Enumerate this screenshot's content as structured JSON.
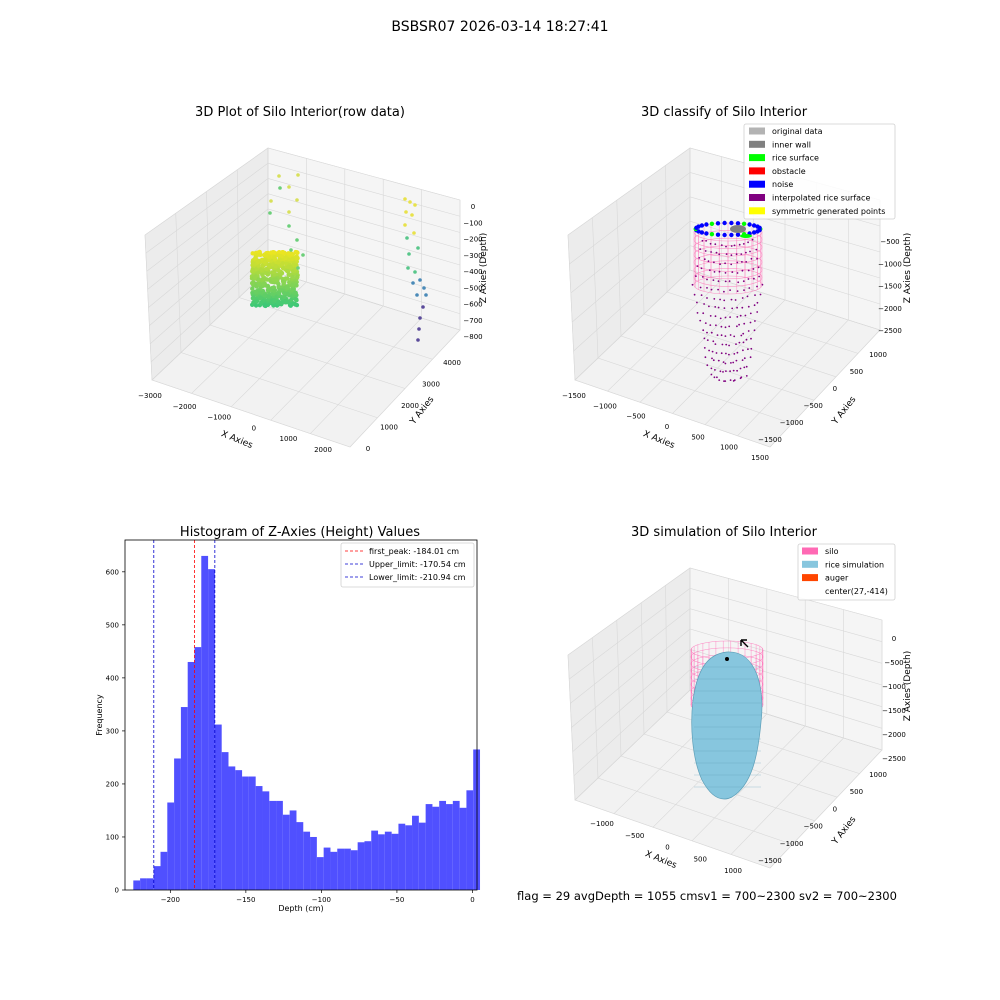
{
  "suptitle": "BSBSR07 2026-03-14 18:27:41",
  "footer": "flag = 29  avgDepth = 1055 cmsv1 = 700~2300  sv2 = 700~2300",
  "colors": {
    "histogram_bar": "#5050ff",
    "peak_line": "#ff0000",
    "limit_line": "#0000cc",
    "silo": "#ff69b4",
    "rice_simulation": "#87c6de",
    "auger": "#ff4500",
    "inner_wall": "#808080",
    "rice_surface": "#00ff00",
    "obstacle": "#ff0000",
    "noise": "#0000ff",
    "interpolated": "#800080",
    "symmetric": "#ffff00",
    "original": "#b3b3b3"
  },
  "chart_data": [
    {
      "type": "scatter",
      "title": "3D Plot of Silo Interior(row data)",
      "xlabel": "X Axies",
      "ylabel": "Y Axies",
      "zlabel": "Z Axies (Depth)",
      "x_ticks": [
        "−3000",
        "−2000",
        "−1000",
        "0",
        "1000",
        "2000"
      ],
      "y_ticks": [
        "0",
        "1000",
        "2000",
        "3000",
        "4000"
      ],
      "z_ticks": [
        "0",
        "−100",
        "−200",
        "−300",
        "−400",
        "−500",
        "−600",
        "−700",
        "−800"
      ]
    },
    {
      "type": "scatter",
      "title": "3D classify of Silo Interior",
      "xlabel": "X Axies",
      "ylabel": "Y Axies",
      "zlabel": "Z Axies (Depth)",
      "x_ticks": [
        "−1500",
        "−1000",
        "−500",
        "0",
        "500",
        "1000",
        "1500"
      ],
      "y_ticks": [
        "−1500",
        "−1000",
        "−500",
        "0",
        "500",
        "1000"
      ],
      "z_ticks": [
        "−500",
        "−1000",
        "−1500",
        "−2000",
        "−2500"
      ],
      "legend": [
        "original data",
        "inner wall",
        "rice surface",
        "obstacle",
        "noise",
        "interpolated rice surface",
        "symmetric generated points"
      ],
      "legend_placement": "top-right"
    },
    {
      "type": "bar",
      "title": "Histogram of Z-Axies (Height) Values",
      "xlabel": "Depth (cm)",
      "ylabel": "Frequency",
      "xlim": [
        -230,
        3
      ],
      "ylim": [
        0,
        660
      ],
      "x_ticks": [
        -200,
        -150,
        -100,
        -50,
        0
      ],
      "y_ticks": [
        0,
        100,
        200,
        300,
        400,
        500,
        600
      ],
      "bin_start": -224.5,
      "bin_width": 4.5,
      "values": [
        18,
        22,
        22,
        45,
        72,
        165,
        248,
        345,
        430,
        458,
        630,
        605,
        312,
        260,
        233,
        226,
        214,
        214,
        196,
        186,
        168,
        168,
        142,
        150,
        128,
        110,
        100,
        62,
        80,
        72,
        78,
        78,
        75,
        90,
        92,
        112,
        105,
        110,
        106,
        125,
        122,
        140,
        127,
        162,
        157,
        168,
        162,
        168,
        155,
        188,
        265
      ],
      "vlines": [
        {
          "label": "first_peak: -184.01 cm",
          "x": -184.01,
          "color": "#ff0000"
        },
        {
          "label": "Upper_limit: -170.54 cm",
          "x": -170.54,
          "color": "#0000cc"
        },
        {
          "label": "Lower_limit: -210.94 cm",
          "x": -210.94,
          "color": "#0000cc"
        }
      ],
      "legend_placement": "top-right"
    },
    {
      "type": "scatter",
      "title": "3D simulation of Silo Interior",
      "xlabel": "X Axies",
      "ylabel": "Y Axies",
      "zlabel": "Z Axies (Depth)",
      "x_ticks": [
        "−1000",
        "−500",
        "0",
        "500",
        "1000"
      ],
      "y_ticks": [
        "−1500",
        "−1000",
        "−500",
        "0",
        "500",
        "1000"
      ],
      "z_ticks": [
        "0",
        "−500",
        "−1000",
        "−1500",
        "−2000",
        "−2500"
      ],
      "legend": [
        "silo",
        "rice simulation",
        "auger",
        "center(27,-414)"
      ],
      "legend_placement": "top-right"
    }
  ]
}
